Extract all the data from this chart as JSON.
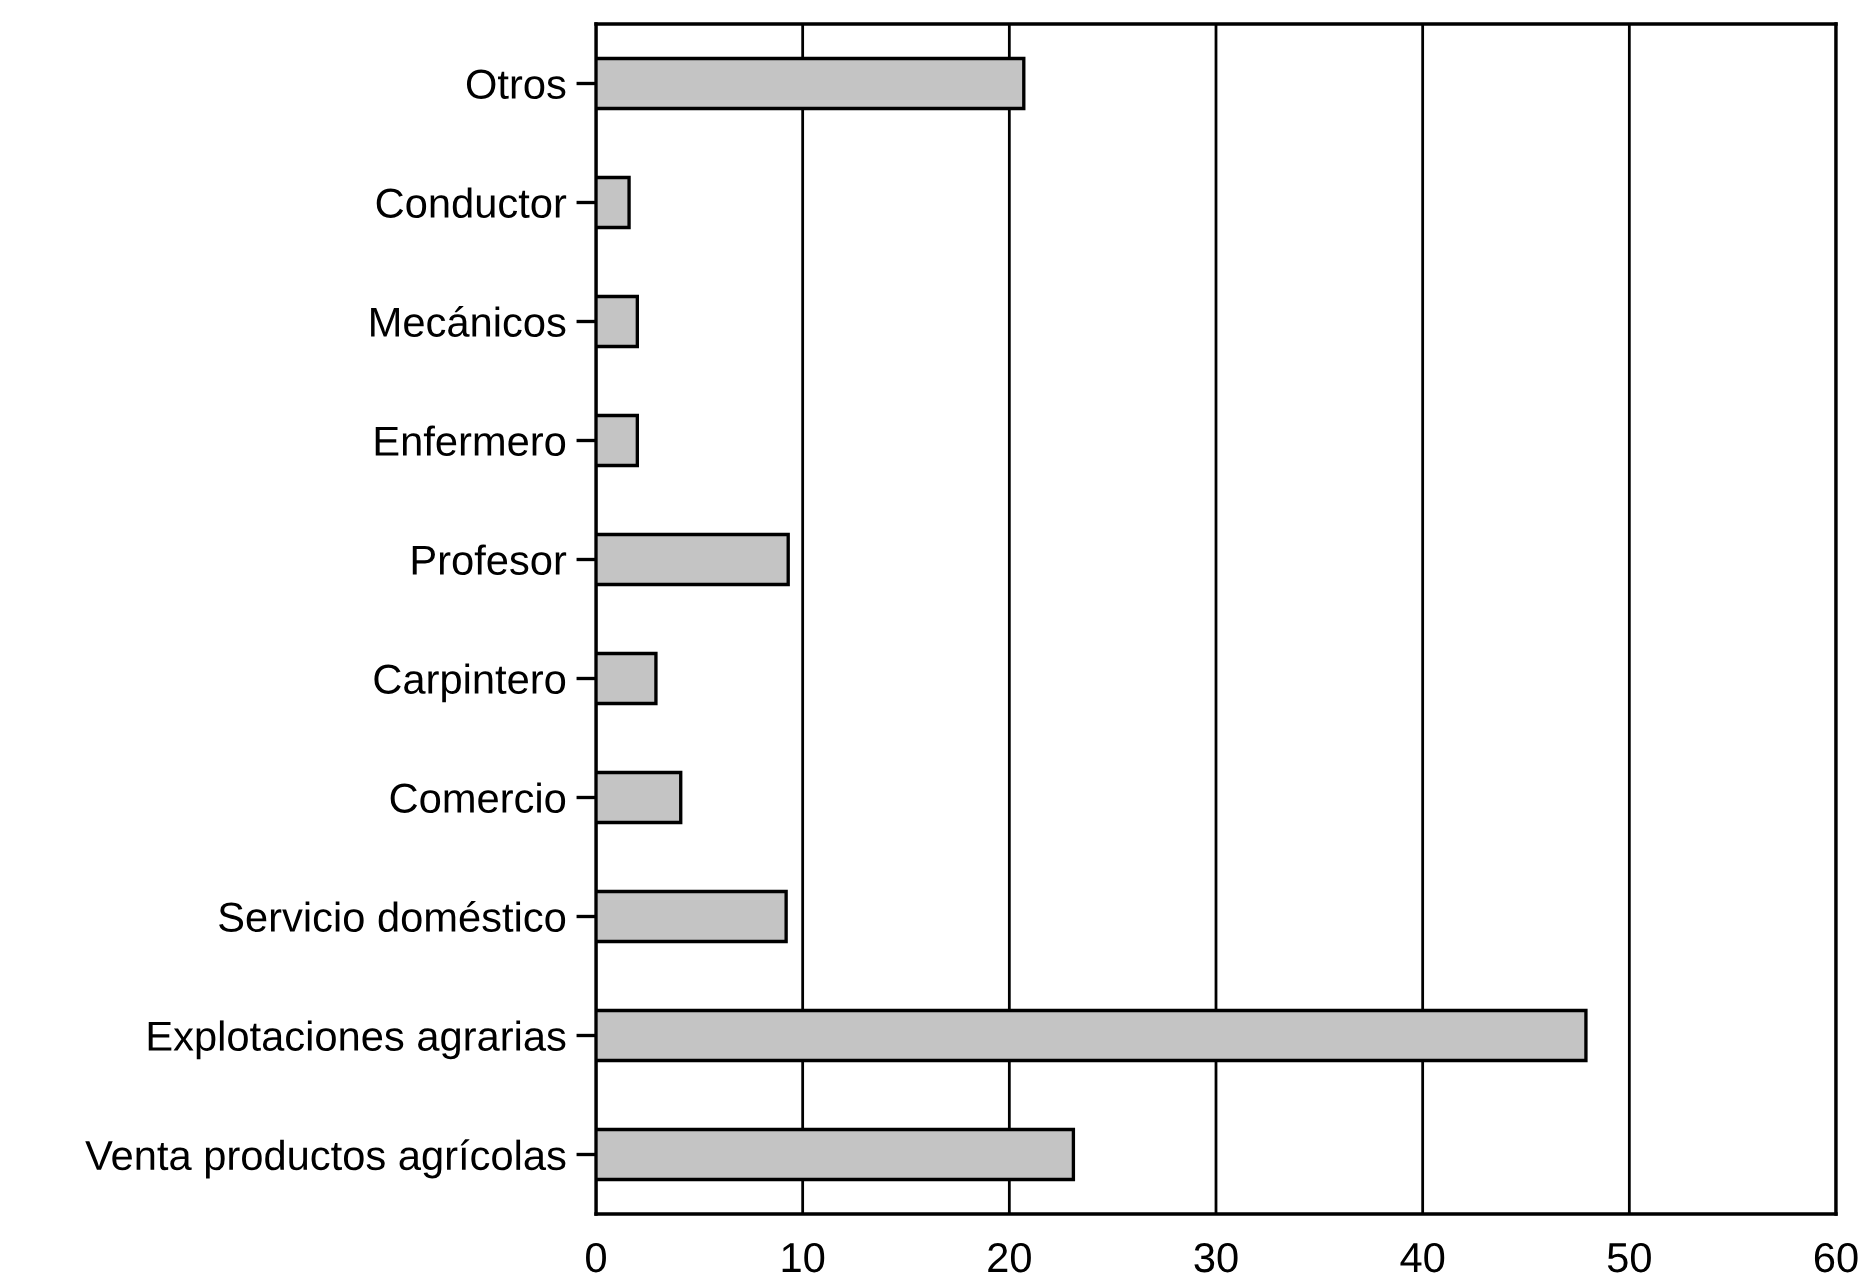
{
  "chart_data": {
    "type": "bar",
    "orientation": "horizontal",
    "categories": [
      "Otros",
      "Conductor",
      "Mecánicos",
      "Enfermero",
      "Profesor",
      "Carpintero",
      "Comercio",
      "Servicio doméstico",
      "Explotaciones agrarias",
      "Venta productos agrícolas"
    ],
    "values": [
      20.7,
      1.6,
      2.0,
      2.0,
      9.3,
      2.9,
      4.1,
      9.2,
      47.9,
      23.1
    ],
    "color": "#c4c4c4",
    "xlim": [
      0,
      60
    ],
    "xticks": [
      0,
      10,
      20,
      30,
      40,
      50,
      60
    ],
    "grid": "x"
  }
}
